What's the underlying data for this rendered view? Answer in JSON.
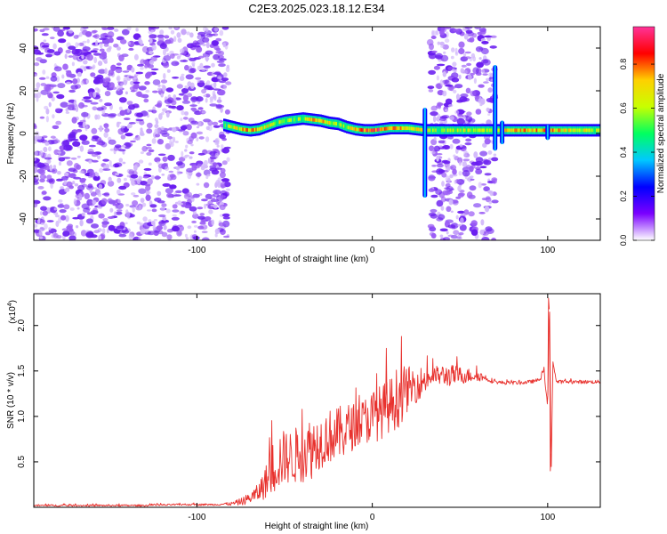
{
  "title": "C2E3.2025.023.18.12.E34",
  "chart_data": [
    {
      "type": "heatmap",
      "xlabel": "Height of straight line (km)",
      "ylabel": "Frequency (Hz)",
      "xlim": [
        -193,
        130
      ],
      "ylim": [
        -50,
        50
      ],
      "x_ticks": [
        -100,
        0,
        100
      ],
      "y_ticks": [
        -40,
        -20,
        0,
        20,
        40
      ],
      "colorbar": {
        "label": "Normalized spectral amplitude",
        "range": [
          0,
          0.97
        ],
        "ticks": [
          0.0,
          0.2,
          0.4,
          0.6,
          0.8
        ],
        "colormap": [
          "#ffffff",
          "#7a00ff",
          "#0000ff",
          "#00c8ff",
          "#00ff60",
          "#c8ff00",
          "#ffd000",
          "#ff0000",
          "#ff3399"
        ]
      },
      "noise_regions_km": [
        [
          -193,
          -82
        ],
        [
          33,
          70
        ]
      ],
      "spikes_km": [
        [
          30,
          -30,
          12
        ],
        [
          70,
          -8,
          32
        ],
        [
          74,
          -5,
          6
        ],
        [
          100,
          -3,
          4
        ]
      ],
      "ridge": {
        "x": [
          -85,
          -80,
          -75,
          -70,
          -65,
          -60,
          -55,
          -50,
          -45,
          -40,
          -35,
          -30,
          -25,
          -20,
          -15,
          -10,
          -5,
          0,
          5,
          10,
          15,
          20,
          25,
          30,
          35,
          40,
          45,
          50,
          55,
          60,
          65,
          70,
          75,
          80,
          85,
          90,
          95,
          100,
          105,
          110,
          115,
          120,
          125,
          130
        ],
        "y": [
          4,
          3,
          2,
          1.5,
          2,
          3.5,
          5,
          6,
          6.5,
          7,
          6.5,
          6,
          5,
          4.5,
          3,
          2,
          1.5,
          1.5,
          2,
          2.5,
          2.5,
          2.5,
          2,
          1.5,
          1.5,
          1.5,
          1.5,
          1.5,
          1.5,
          1.5,
          1.5,
          1.5,
          1.5,
          1.5,
          1.5,
          1.5,
          1.5,
          1.5,
          1.5,
          1.5,
          1.5,
          1.5,
          1.5,
          1.5
        ],
        "amplitude": [
          0.5,
          0.6,
          0.7,
          0.75,
          0.7,
          0.65,
          0.6,
          0.55,
          0.55,
          0.6,
          0.7,
          0.75,
          0.65,
          0.55,
          0.6,
          0.7,
          0.8,
          0.9,
          0.85,
          0.8,
          0.75,
          0.7,
          0.65,
          0.6,
          0.55,
          0.55,
          0.55,
          0.6,
          0.6,
          0.6,
          0.6,
          0.6,
          0.7,
          0.75,
          0.75,
          0.75,
          0.75,
          0.75,
          0.7,
          0.7,
          0.65,
          0.65,
          0.6,
          0.6
        ]
      }
    },
    {
      "type": "line",
      "xlabel": "Height of straight line (km)",
      "ylabel": "SNR (10 * v/v)",
      "multiplier_label": "(x10",
      "multiplier_exp": "4",
      "multiplier_close": ")",
      "xlim": [
        -193,
        130
      ],
      "ylim": [
        0,
        2.35
      ],
      "x_ticks": [
        -100,
        0,
        100
      ],
      "y_ticks": [
        "0.5",
        "1.0",
        "1.5",
        "2.0"
      ],
      "color": "#e8312d",
      "series": [
        {
          "x": [
            -193,
            -170,
            -150,
            -130,
            -110,
            -100,
            -90,
            -80,
            -75,
            -70,
            -65,
            -60,
            -55,
            -50,
            -45,
            -40,
            -35,
            -30,
            -25,
            -20,
            -15,
            -10,
            -5,
            0,
            5,
            10,
            15,
            20,
            25,
            30,
            35,
            40,
            45,
            50,
            55,
            60,
            65,
            70,
            75,
            80,
            85,
            90,
            95,
            98,
            100,
            101,
            102,
            103,
            105,
            110,
            115,
            120,
            125,
            130
          ],
          "y": [
            0.02,
            0.02,
            0.02,
            0.02,
            0.03,
            0.03,
            0.03,
            0.04,
            0.06,
            0.1,
            0.16,
            0.3,
            0.5,
            0.55,
            0.55,
            0.62,
            0.65,
            0.72,
            0.78,
            0.8,
            0.85,
            0.9,
            0.95,
            1.0,
            1.05,
            1.12,
            1.22,
            1.3,
            1.35,
            1.4,
            1.45,
            1.45,
            1.45,
            1.45,
            1.45,
            1.45,
            1.42,
            1.38,
            1.37,
            1.37,
            1.37,
            1.38,
            1.4,
            1.5,
            1.1,
            2.3,
            0.4,
            1.6,
            1.38,
            1.38,
            1.38,
            1.38,
            1.38,
            1.38
          ],
          "spread": [
            0.01,
            0.01,
            0.01,
            0.01,
            0.01,
            0.01,
            0.01,
            0.02,
            0.04,
            0.06,
            0.1,
            0.2,
            0.35,
            0.3,
            0.3,
            0.35,
            0.35,
            0.3,
            0.3,
            0.3,
            0.3,
            0.25,
            0.25,
            0.3,
            0.3,
            0.3,
            0.35,
            0.25,
            0.2,
            0.15,
            0.1,
            0.12,
            0.12,
            0.1,
            0.08,
            0.06,
            0.04,
            0.02,
            0.02,
            0.02,
            0.02,
            0.02,
            0.02,
            0.05,
            0.0,
            0.0,
            0.0,
            0.0,
            0.02,
            0.02,
            0.02,
            0.02,
            0.02,
            0.02
          ]
        }
      ],
      "annotations": [
        {
          "x": 8,
          "y": 1.75
        },
        {
          "x": 100.5,
          "y": 2.3
        },
        {
          "x": 101.5,
          "y": 0.4
        }
      ]
    }
  ]
}
